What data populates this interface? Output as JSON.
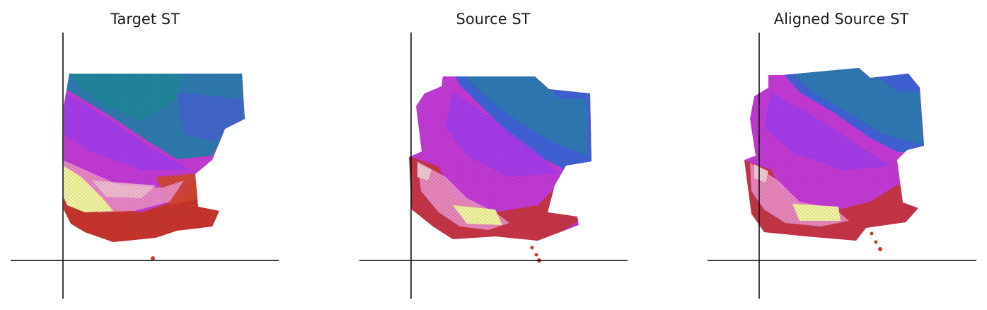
{
  "figure": {
    "colors": {
      "teal": "#1f8a9a",
      "blue": "#3f63d6",
      "violet": "#8a3ef0",
      "magenta": "#d23ae0",
      "pink": "#ec8fc6",
      "pale_yellow": "#f1f3a0",
      "red": "#c8352e",
      "orange_red": "#d2472a",
      "axis": "#000000"
    }
  },
  "chart_data": [
    {
      "type": "scatter",
      "title": "Target ST",
      "description_of_marks": "hexagonal spatial transcriptomics spots colored by cluster",
      "regions": [
        "teal/blue (top)",
        "magenta/violet (middle)",
        "pale yellow/pink band (lower-left)",
        "red (bottom)"
      ]
    },
    {
      "type": "scatter",
      "title": "Source ST",
      "regions": [
        "teal/blue (top-right)",
        "magenta/violet (middle)",
        "pale yellow/pink band (bottom)",
        "red (bottom edge)"
      ]
    },
    {
      "type": "scatter",
      "title": "Aligned Source ST",
      "regions": [
        "teal/blue (top-right, tilted)",
        "magenta/violet (middle)",
        "pale yellow/pink band (bottom)",
        "red (bottom edge)"
      ]
    }
  ]
}
